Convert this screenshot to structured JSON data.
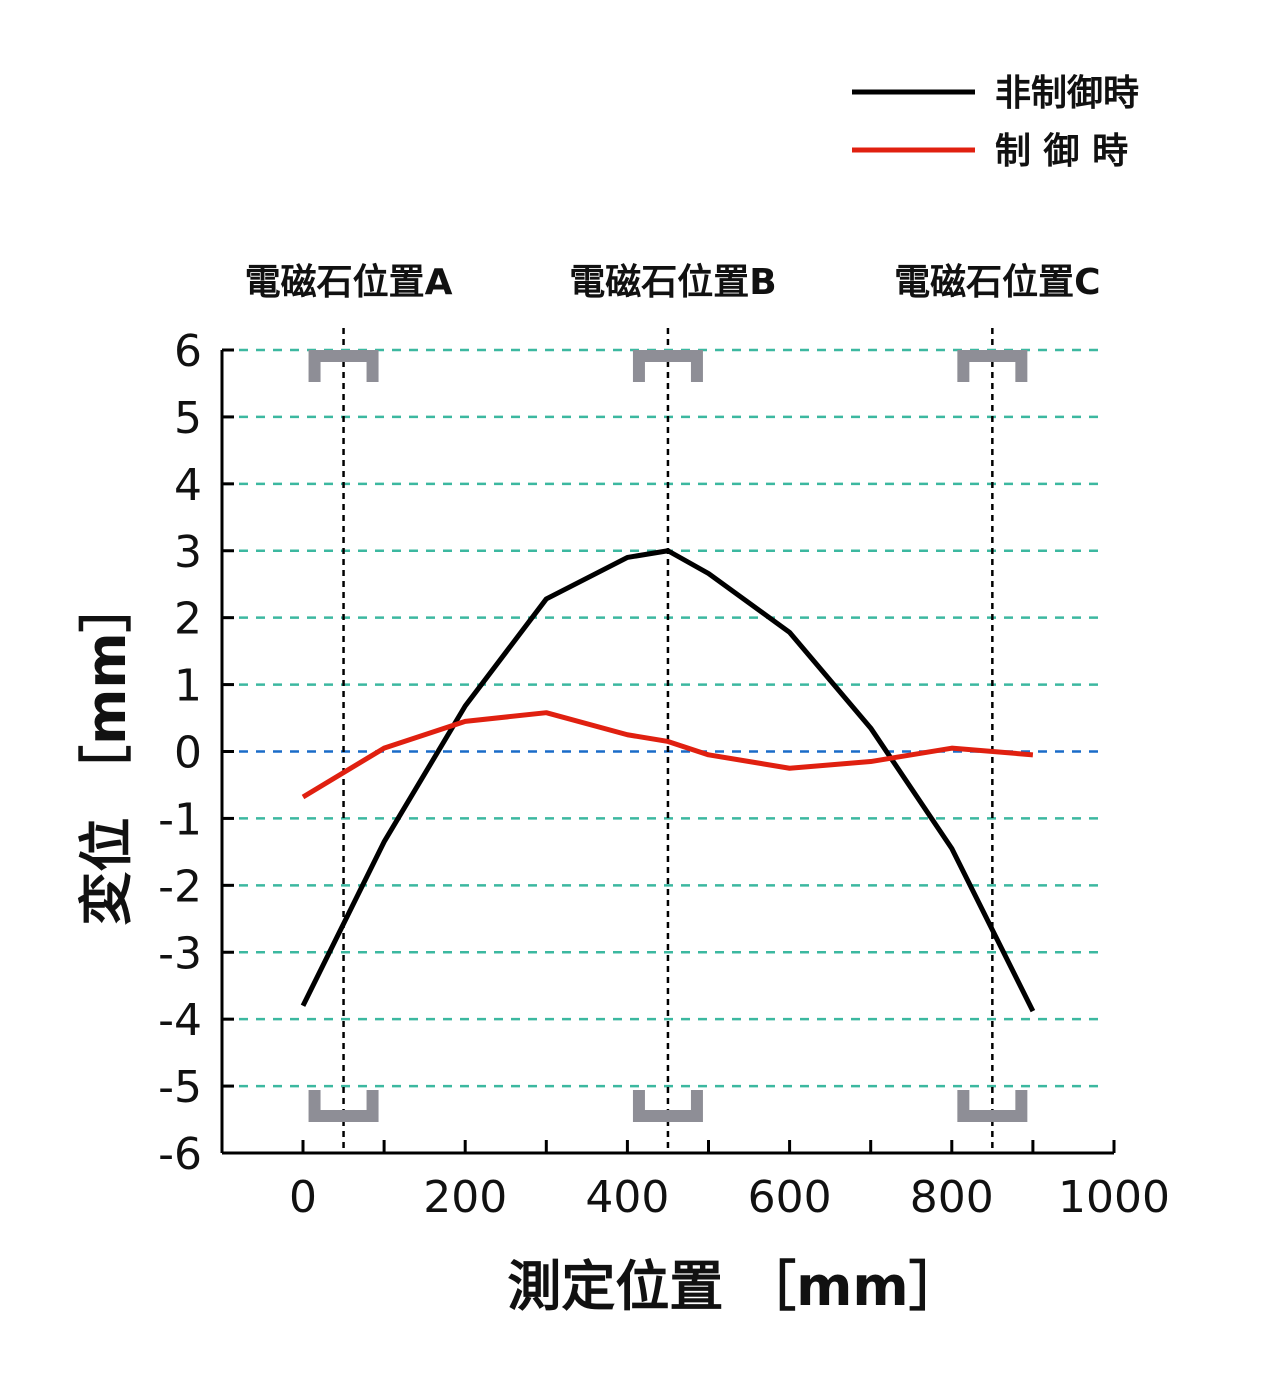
{
  "chart_data": {
    "type": "line",
    "xlabel": "測定位置 ［mm］",
    "ylabel": "変位 ［mm］",
    "xlim": [
      -100,
      1000
    ],
    "ylim": [
      -6,
      6
    ],
    "x_ticks": [
      0,
      200,
      400,
      600,
      800,
      1000
    ],
    "y_ticks": [
      6,
      5,
      4,
      3,
      2,
      1,
      0,
      -1,
      -2,
      -3,
      -4,
      -5,
      -6
    ],
    "x_tick_labels": [
      "0",
      "200",
      "400",
      "600",
      "800",
      "1000"
    ],
    "y_tick_labels": [
      "6",
      "5",
      "4",
      "3",
      "2",
      "1",
      "0",
      "-1",
      "-2",
      "-3",
      "-4",
      "-5",
      "-6"
    ],
    "grid": "horizontal dashed",
    "legend_position": "top-right",
    "magnet_positions": [
      {
        "label": "電磁石位置A",
        "x": 50
      },
      {
        "label": "電磁石位置B",
        "x": 450
      },
      {
        "label": "電磁石位置C",
        "x": 850
      }
    ],
    "series": [
      {
        "name": "非制御時",
        "color": "#000000",
        "x": [
          0,
          100,
          200,
          300,
          400,
          450,
          500,
          600,
          700,
          800,
          900
        ],
        "y": [
          -3.8,
          -1.35,
          0.68,
          2.28,
          2.9,
          3.0,
          2.66,
          1.78,
          0.35,
          -1.45,
          -3.88
        ]
      },
      {
        "name": "制 御 時",
        "color": "#e02010",
        "x": [
          0,
          100,
          200,
          300,
          400,
          450,
          500,
          600,
          700,
          800,
          900
        ],
        "y": [
          -0.68,
          0.05,
          0.45,
          0.58,
          0.25,
          0.15,
          -0.05,
          -0.25,
          -0.15,
          0.05,
          -0.05
        ]
      }
    ]
  },
  "colors": {
    "grid": "#3cb8a0",
    "zero_line": "#1a6cc8",
    "bracket": "#8e8e96",
    "axis": "#000000"
  }
}
